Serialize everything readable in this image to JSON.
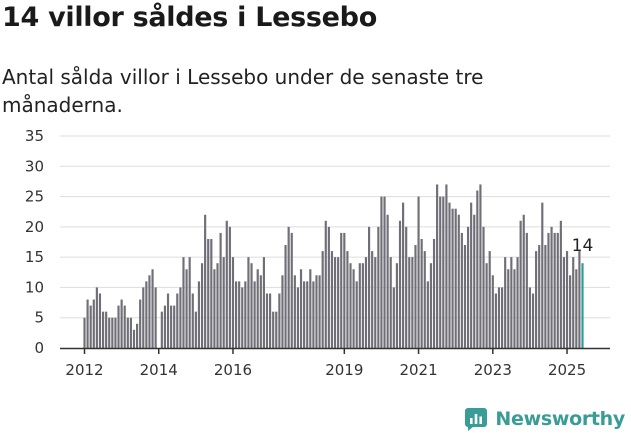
{
  "header": {
    "title": "14 villor såldes i Lessebo",
    "subtitle": "Antal sålda villor i Lessebo under de senaste tre månaderna."
  },
  "brand": {
    "name": "Newsworthy"
  },
  "colors": {
    "bar": "#706f77",
    "highlight": "#2c9c96",
    "grid": "#dddddd",
    "axis": "#333333",
    "brand": "#3a9c96"
  },
  "chart_data": {
    "type": "bar",
    "xlabel": "",
    "ylabel": "",
    "ylim": [
      0,
      35
    ],
    "yticks": [
      0,
      5,
      10,
      15,
      20,
      25,
      30,
      35
    ],
    "xtick_labels": [
      "2012",
      "2014",
      "2016",
      "2019",
      "2021",
      "2023",
      "2025"
    ],
    "grid": true,
    "highlight_label": "14",
    "x": [
      "2012-01",
      "2012-02",
      "2012-03",
      "2012-04",
      "2012-05",
      "2012-06",
      "2012-07",
      "2012-08",
      "2012-09",
      "2012-10",
      "2012-11",
      "2012-12",
      "2013-01",
      "2013-02",
      "2013-03",
      "2013-04",
      "2013-05",
      "2013-06",
      "2013-07",
      "2013-08",
      "2013-09",
      "2013-10",
      "2013-11",
      "2013-12",
      "2014-01",
      "2014-02",
      "2014-03",
      "2014-04",
      "2014-05",
      "2014-06",
      "2014-07",
      "2014-08",
      "2014-09",
      "2014-10",
      "2014-11",
      "2014-12",
      "2015-01",
      "2015-02",
      "2015-03",
      "2015-04",
      "2015-05",
      "2015-06",
      "2015-07",
      "2015-08",
      "2015-09",
      "2015-10",
      "2015-11",
      "2015-12",
      "2016-01",
      "2016-02",
      "2016-03",
      "2016-04",
      "2016-05",
      "2016-06",
      "2016-07",
      "2016-08",
      "2016-09",
      "2016-10",
      "2016-11",
      "2016-12",
      "2017-01",
      "2017-02",
      "2017-03",
      "2017-04",
      "2017-05",
      "2017-06",
      "2017-07",
      "2017-08",
      "2017-09",
      "2017-10",
      "2017-11",
      "2017-12",
      "2018-01",
      "2018-02",
      "2018-03",
      "2018-04",
      "2018-05",
      "2018-06",
      "2018-07",
      "2018-08",
      "2018-09",
      "2018-10",
      "2018-11",
      "2018-12",
      "2019-01",
      "2019-02",
      "2019-03",
      "2019-04",
      "2019-05",
      "2019-06",
      "2019-07",
      "2019-08",
      "2019-09",
      "2019-10",
      "2019-11",
      "2019-12",
      "2020-01",
      "2020-02",
      "2020-03",
      "2020-04",
      "2020-05",
      "2020-06",
      "2020-07",
      "2020-08",
      "2020-09",
      "2020-10",
      "2020-11",
      "2020-12",
      "2021-01",
      "2021-02",
      "2021-03",
      "2021-04",
      "2021-05",
      "2021-06",
      "2021-07",
      "2021-08",
      "2021-09",
      "2021-10",
      "2021-11",
      "2021-12",
      "2022-01",
      "2022-02",
      "2022-03",
      "2022-04",
      "2022-05",
      "2022-06",
      "2022-07",
      "2022-08",
      "2022-09",
      "2022-10",
      "2022-11",
      "2022-12",
      "2023-01",
      "2023-02",
      "2023-03",
      "2023-04",
      "2023-05",
      "2023-06",
      "2023-07",
      "2023-08",
      "2023-09",
      "2023-10",
      "2023-11",
      "2023-12",
      "2024-01",
      "2024-02",
      "2024-03",
      "2024-04",
      "2024-05",
      "2024-06",
      "2024-07",
      "2024-08",
      "2024-09",
      "2024-10",
      "2024-11",
      "2024-12",
      "2025-01",
      "2025-02",
      "2025-03",
      "2025-04",
      "2025-05",
      "2025-06"
    ],
    "values": [
      5,
      8,
      7,
      8,
      10,
      9,
      6,
      6,
      5,
      5,
      5,
      7,
      8,
      7,
      5,
      5,
      3,
      4,
      8,
      10,
      11,
      12,
      13,
      10,
      0,
      6,
      7,
      9,
      7,
      7,
      9,
      10,
      15,
      13,
      15,
      9,
      6,
      11,
      14,
      22,
      18,
      18,
      13,
      14,
      19,
      15,
      21,
      20,
      15,
      11,
      11,
      10,
      11,
      15,
      14,
      11,
      13,
      12,
      15,
      9,
      9,
      6,
      6,
      9,
      12,
      17,
      20,
      19,
      12,
      10,
      13,
      11,
      11,
      13,
      11,
      12,
      12,
      16,
      21,
      20,
      16,
      15,
      15,
      19,
      19,
      16,
      14,
      13,
      11,
      14,
      14,
      15,
      20,
      16,
      15,
      20,
      25,
      25,
      22,
      15,
      10,
      14,
      21,
      24,
      20,
      15,
      15,
      17,
      25,
      18,
      16,
      11,
      14,
      18,
      27,
      25,
      25,
      27,
      24,
      23,
      23,
      22,
      19,
      17,
      20,
      24,
      22,
      26,
      27,
      20,
      14,
      16,
      12,
      9,
      10,
      10,
      15,
      13,
      15,
      13,
      15,
      21,
      22,
      19,
      10,
      9,
      16,
      17,
      24,
      17,
      19,
      20,
      19,
      19,
      21,
      15,
      16,
      12,
      15,
      13,
      16,
      14
    ]
  }
}
